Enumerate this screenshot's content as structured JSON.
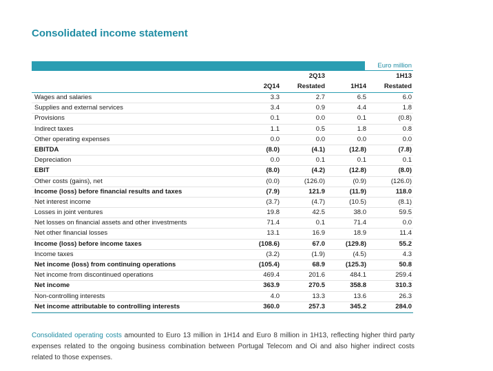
{
  "title": "Consolidated income statement",
  "table": {
    "unit": "Euro million",
    "columns": [
      {
        "line1": "",
        "line2": "2Q14"
      },
      {
        "line1": "2Q13",
        "line2": "Restated"
      },
      {
        "line1": "",
        "line2": "1H14"
      },
      {
        "line1": "1H13",
        "line2": "Restated"
      }
    ],
    "rows": [
      {
        "label": "Wages and salaries",
        "bold": false,
        "values": [
          "3.3",
          "2.7",
          "6.5",
          "6.0"
        ]
      },
      {
        "label": "Supplies and external services",
        "bold": false,
        "values": [
          "3.4",
          "0.9",
          "4.4",
          "1.8"
        ]
      },
      {
        "label": "Provisions",
        "bold": false,
        "values": [
          "0.1",
          "0.0",
          "0.1",
          "(0.8)"
        ]
      },
      {
        "label": "Indirect taxes",
        "bold": false,
        "values": [
          "1.1",
          "0.5",
          "1.8",
          "0.8"
        ]
      },
      {
        "label": "Other operating expenses",
        "bold": false,
        "values": [
          "0.0",
          "0.0",
          "0.0",
          "0.0"
        ]
      },
      {
        "label": "EBITDA",
        "bold": true,
        "values": [
          "(8.0)",
          "(4.1)",
          "(12.8)",
          "(7.8)"
        ]
      },
      {
        "label": "Depreciation",
        "bold": false,
        "values": [
          "0.0",
          "0.1",
          "0.1",
          "0.1"
        ]
      },
      {
        "label": "EBIT",
        "bold": true,
        "values": [
          "(8.0)",
          "(4.2)",
          "(12.8)",
          "(8.0)"
        ]
      },
      {
        "label": "Other costs (gains), net",
        "bold": false,
        "values": [
          "(0.0)",
          "(126.0)",
          "(0.9)",
          "(126.0)"
        ]
      },
      {
        "label": "Income (loss) before financial results and taxes",
        "bold": true,
        "values": [
          "(7.9)",
          "121.9",
          "(11.9)",
          "118.0"
        ]
      },
      {
        "label": "Net interest income",
        "bold": false,
        "values": [
          "(3.7)",
          "(4.7)",
          "(10.5)",
          "(8.1)"
        ]
      },
      {
        "label": "Losses in joint ventures",
        "bold": false,
        "values": [
          "19.8",
          "42.5",
          "38.0",
          "59.5"
        ]
      },
      {
        "label": "Net losses on financial assets and other investments",
        "bold": false,
        "values": [
          "71.4",
          "0.1",
          "71.4",
          "0.0"
        ]
      },
      {
        "label": "Net other financial losses",
        "bold": false,
        "values": [
          "13.1",
          "16.9",
          "18.9",
          "11.4"
        ]
      },
      {
        "label": "Income (loss) before income taxes",
        "bold": true,
        "values": [
          "(108.6)",
          "67.0",
          "(129.8)",
          "55.2"
        ]
      },
      {
        "label": "Income taxes",
        "bold": false,
        "values": [
          "(3.2)",
          "(1.9)",
          "(4.5)",
          "4.3"
        ]
      },
      {
        "label": "Net income (loss) from continuing operations",
        "bold": true,
        "values": [
          "(105.4)",
          "68.9",
          "(125.3)",
          "50.8"
        ]
      },
      {
        "label": "Net income from discontinued operations",
        "bold": false,
        "values": [
          "469.4",
          "201.6",
          "484.1",
          "259.4"
        ]
      },
      {
        "label": "Net income",
        "bold": true,
        "values": [
          "363.9",
          "270.5",
          "358.8",
          "310.3"
        ]
      },
      {
        "label": "Non-controlling interests",
        "bold": false,
        "values": [
          "4.0",
          "13.3",
          "13.6",
          "26.3"
        ]
      },
      {
        "label": "Net income attributable to controlling interests",
        "bold": true,
        "values": [
          "360.0",
          "257.3",
          "345.2",
          "284.0"
        ]
      }
    ]
  },
  "note": {
    "lead": "Consolidated operating costs",
    "text": " amounted to Euro 13 million in 1H14 and Euro 8 million in 1H13, reflecting higher third party expenses related to the ongoing business combination between Portugal Telecom and Oi and also higher indirect costs related to those expenses."
  },
  "colors": {
    "accent": "#1f8ca3",
    "band": "#2a9db2"
  }
}
